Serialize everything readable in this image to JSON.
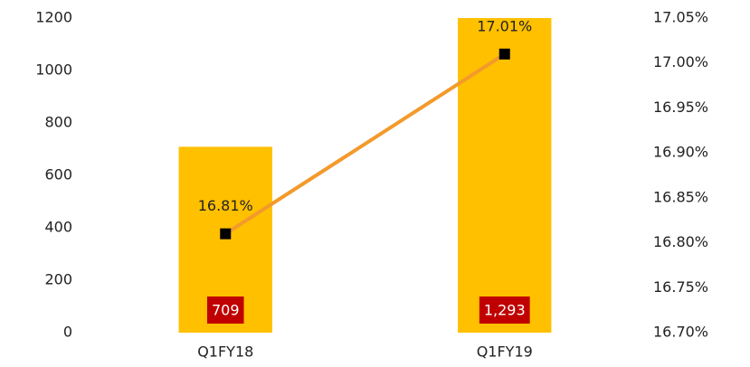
{
  "chart_data": {
    "type": "bar_line",
    "categories": [
      "Q1FY18",
      "Q1FY19"
    ],
    "series": [
      {
        "type": "bar",
        "color": "#ffc000",
        "label_color": "#c00000",
        "values": [
          709,
          1293
        ],
        "value_labels": [
          "709",
          "1,293"
        ]
      },
      {
        "type": "line",
        "axis": "y2",
        "color": "#f39a2b",
        "marker_color": "#000000",
        "values": [
          16.81,
          17.01
        ],
        "value_labels": [
          "16.81%",
          "17.01%"
        ]
      }
    ],
    "ylim": [
      0,
      1200
    ],
    "yticks": [
      0,
      200,
      400,
      600,
      800,
      1000,
      1200
    ],
    "y2lim": [
      16.7,
      17.05
    ],
    "y2ticks": [
      {
        "value": 16.7,
        "label": "16.70%"
      },
      {
        "value": 16.75,
        "label": "16.75%"
      },
      {
        "value": 16.8,
        "label": "16.80%"
      },
      {
        "value": 16.85,
        "label": "16.85%"
      },
      {
        "value": 16.9,
        "label": "16.90%"
      },
      {
        "value": 16.95,
        "label": "16.95%"
      },
      {
        "value": 17.0,
        "label": "17.00%"
      },
      {
        "value": 17.05,
        "label": "17.05%"
      }
    ],
    "grid": false
  }
}
